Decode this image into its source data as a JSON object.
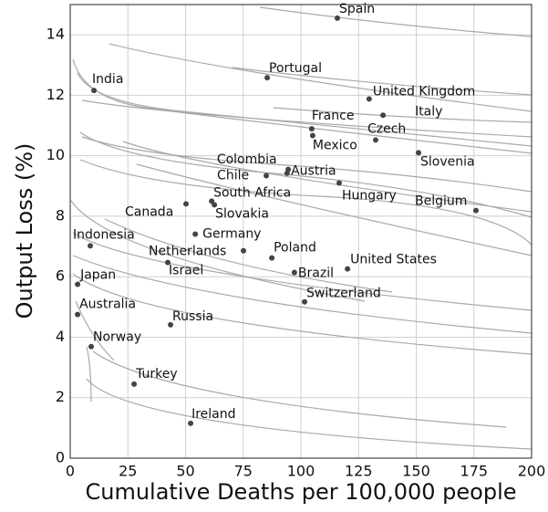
{
  "chart_data": {
    "type": "scatter",
    "x_label": "Cumulative Deaths per 100,000 people",
    "y_label": "Output Loss (%)",
    "labels": [
      "Spain",
      "Portugal",
      "India",
      "United Kingdom",
      "Italy",
      "France",
      "Mexico",
      "Czech",
      "Slovenia",
      "Colombia",
      "Chile",
      "Austria",
      "Hungary",
      "Belgium",
      "Canada",
      "South Africa",
      "Slovakia",
      "Germany",
      "Netherlands",
      "Poland",
      "Indonesia",
      "Israel",
      "Brazil",
      "United States",
      "Japan",
      "Switzerland",
      "Australia",
      "Russia",
      "Norway",
      "Turkey",
      "Ireland"
    ],
    "x": [
      115.8,
      85.4,
      10.3,
      129.6,
      135.6,
      104.7,
      105.1,
      132.4,
      151,
      94,
      85,
      94.5,
      116.6,
      175.9,
      50.2,
      61.3,
      62.5,
      54.2,
      75.1,
      87.4,
      8.7,
      42.3,
      97.2,
      120.2,
      3.2,
      101.6,
      3.2,
      43.5,
      9.1,
      27.7,
      52.2
    ],
    "values": [
      14.55,
      12.58,
      12.16,
      11.88,
      11.34,
      10.89,
      10.67,
      10.52,
      10.1,
      9.42,
      9.34,
      9.55,
      9.1,
      8.19,
      8.41,
      8.5,
      8.38,
      7.41,
      6.86,
      6.62,
      7.02,
      6.47,
      6.14,
      6.26,
      5.75,
      5.17,
      4.75,
      4.41,
      3.69,
      2.45,
      1.15
    ],
    "color": "#444444",
    "xlim": [
      0,
      200
    ],
    "xticks": [
      0,
      25,
      50,
      75,
      100,
      125,
      150,
      175,
      200
    ],
    "ylim": [
      0,
      15
    ],
    "yticks": [
      0,
      2,
      4,
      6,
      8,
      10,
      12,
      14
    ],
    "grid": true
  }
}
